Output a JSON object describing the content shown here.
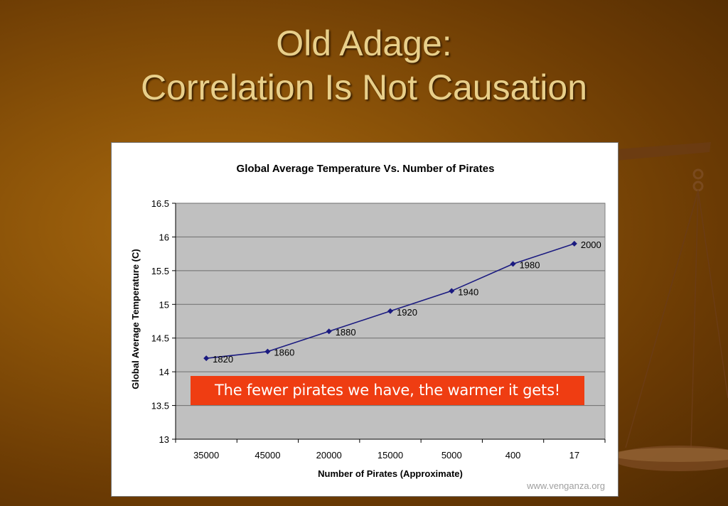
{
  "slide": {
    "title_line1": "Old Adage:",
    "title_line2": "Correlation Is Not Causation",
    "callout": "The fewer pirates we have, the warmer it gets!",
    "watermark": "www.venganza.org"
  },
  "colors": {
    "background": "#8a5208",
    "title": "#e8cf8a",
    "plot_area": "#c0c0c0",
    "series_line": "#1a1a80",
    "callout_bg": "#ef3d12"
  },
  "chart_data": {
    "type": "line",
    "title": "Global Average Temperature Vs. Number of Pirates",
    "xlabel": "Number of Pirates (Approximate)",
    "ylabel": "Global Average Temperature (C)",
    "categories": [
      "35000",
      "45000",
      "20000",
      "15000",
      "5000",
      "400",
      "17"
    ],
    "series": [
      {
        "values": [
          14.2,
          14.3,
          14.6,
          14.9,
          15.2,
          15.6,
          15.9
        ],
        "point_labels": [
          "1820",
          "1860",
          "1880",
          "1920",
          "1940",
          "1980",
          "2000"
        ]
      }
    ],
    "ylim": [
      13,
      16.5
    ],
    "yticks": [
      "13",
      "13.5",
      "14",
      "14.5",
      "15",
      "15.5",
      "16",
      "16.5"
    ],
    "grid": "horizontal",
    "legend": "none"
  }
}
